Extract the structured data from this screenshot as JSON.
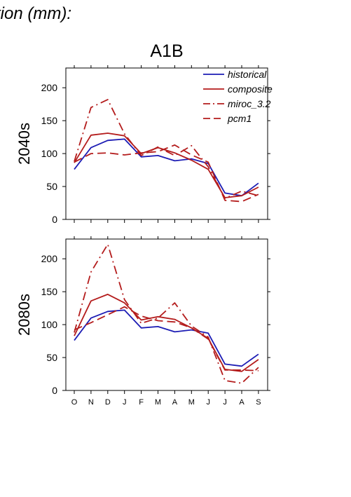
{
  "page_title": "tion (mm):",
  "scenario_title": "A1B",
  "colors": {
    "historical": "#1c1cb4",
    "composite": "#b41c1c",
    "miroc_3.2": "#b41c1c",
    "pcm1": "#b41c1c"
  },
  "chart_data": [
    {
      "type": "line",
      "row_label": "2040s",
      "categories": [
        "O",
        "N",
        "D",
        "J",
        "F",
        "M",
        "A",
        "M",
        "J",
        "J",
        "A",
        "S"
      ],
      "ylim": [
        0,
        230
      ],
      "yticks": [
        0,
        50,
        100,
        150,
        200
      ],
      "legend": {
        "placement": "top-right",
        "entries": [
          "historical",
          "composite",
          "miroc_3.2",
          "pcm1"
        ]
      },
      "series": [
        {
          "name": "historical",
          "style": "solid",
          "values": [
            76,
            109,
            120,
            122,
            95,
            97,
            89,
            92,
            85,
            40,
            36,
            55
          ]
        },
        {
          "name": "composite",
          "style": "solid",
          "values": [
            86,
            128,
            131,
            127,
            100,
            109,
            101,
            90,
            76,
            33,
            36,
            49
          ]
        },
        {
          "name": "miroc_3.2",
          "style": "dashdot",
          "values": [
            88,
            170,
            182,
            130,
            97,
            110,
            97,
            112,
            80,
            32,
            43,
            36
          ]
        },
        {
          "name": "pcm1",
          "style": "dashed",
          "values": [
            87,
            100,
            101,
            98,
            101,
            103,
            113,
            98,
            87,
            29,
            27,
            38
          ]
        }
      ]
    },
    {
      "type": "line",
      "row_label": "2080s",
      "categories": [
        "O",
        "N",
        "D",
        "J",
        "F",
        "M",
        "A",
        "M",
        "J",
        "J",
        "A",
        "S"
      ],
      "ylim": [
        0,
        230
      ],
      "yticks": [
        0,
        50,
        100,
        150,
        200
      ],
      "series": [
        {
          "name": "historical",
          "style": "solid",
          "values": [
            76,
            110,
            120,
            122,
            95,
            97,
            89,
            92,
            87,
            40,
            37,
            55
          ]
        },
        {
          "name": "composite",
          "style": "solid",
          "values": [
            83,
            136,
            146,
            133,
            107,
            112,
            108,
            95,
            79,
            32,
            29,
            47
          ]
        },
        {
          "name": "miroc_3.2",
          "style": "dashdot",
          "values": [
            88,
            180,
            222,
            138,
            102,
            110,
            133,
            98,
            81,
            15,
            11,
            35
          ]
        },
        {
          "name": "pcm1",
          "style": "dashed",
          "values": [
            92,
            103,
            115,
            127,
            113,
            106,
            104,
            95,
            78,
            31,
            31,
            30
          ]
        }
      ]
    }
  ]
}
